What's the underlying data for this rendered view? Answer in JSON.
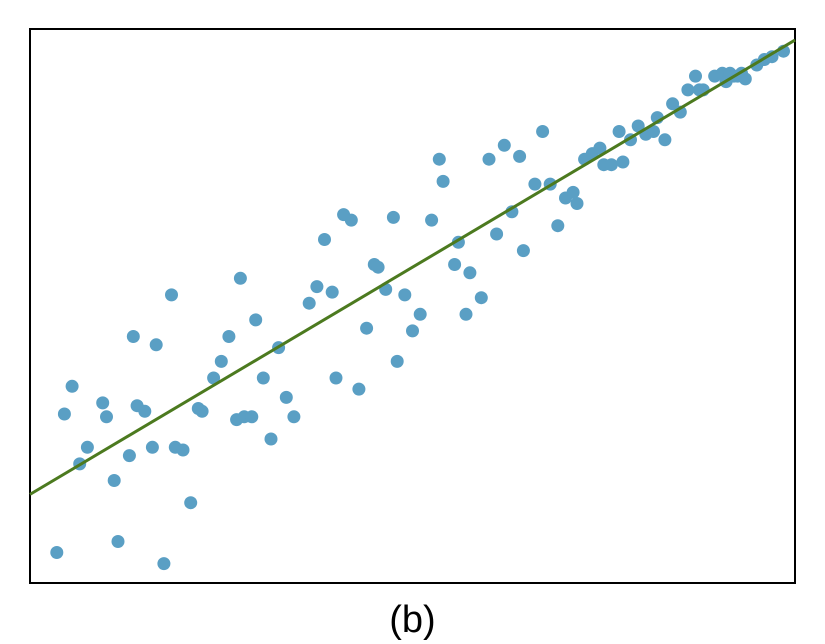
{
  "caption": "(b)",
  "chart_data": {
    "type": "scatter",
    "title": "",
    "xlabel": "",
    "ylabel": "",
    "xlim": [
      0,
      100
    ],
    "ylim": [
      0,
      100
    ],
    "grid": false,
    "axis_ticks": false,
    "colors": {
      "points": "#5a9fc4",
      "trend_line": "#4c7a1f",
      "frame": "#000000"
    },
    "trend_line": {
      "intercept": 16,
      "slope": 0.82
    },
    "series": [
      {
        "points": [
          [
            3.5,
            5.5
          ],
          [
            4.5,
            30.5
          ],
          [
            5.5,
            35.5
          ],
          [
            6.5,
            21.5
          ],
          [
            7.5,
            24.5
          ],
          [
            9.5,
            32.5
          ],
          [
            11.5,
            7.5
          ],
          [
            10.0,
            30.0
          ],
          [
            11.0,
            18.5
          ],
          [
            13.0,
            23.0
          ],
          [
            13.5,
            44.5
          ],
          [
            14.0,
            32.0
          ],
          [
            15.0,
            31.0
          ],
          [
            16.0,
            24.5
          ],
          [
            16.5,
            43.0
          ],
          [
            17.5,
            3.5
          ],
          [
            18.5,
            52.0
          ],
          [
            19.0,
            24.5
          ],
          [
            20.0,
            24.0
          ],
          [
            21.0,
            14.5
          ],
          [
            22.0,
            31.5
          ],
          [
            22.5,
            31.0
          ],
          [
            24.0,
            37.0
          ],
          [
            25.0,
            40.0
          ],
          [
            26.0,
            44.5
          ],
          [
            27.0,
            29.5
          ],
          [
            27.5,
            55.0
          ],
          [
            28.0,
            30.0
          ],
          [
            29.5,
            47.5
          ],
          [
            29.0,
            30.0
          ],
          [
            30.5,
            37.0
          ],
          [
            31.5,
            26.0
          ],
          [
            32.5,
            42.5
          ],
          [
            33.5,
            33.5
          ],
          [
            34.5,
            30.0
          ],
          [
            36.5,
            50.5
          ],
          [
            37.5,
            53.5
          ],
          [
            38.5,
            62.0
          ],
          [
            39.5,
            52.5
          ],
          [
            40.0,
            37.0
          ],
          [
            41.0,
            66.5
          ],
          [
            42.0,
            65.5
          ],
          [
            43.0,
            35.0
          ],
          [
            44.0,
            46.0
          ],
          [
            45.0,
            57.5
          ],
          [
            45.5,
            57.0
          ],
          [
            46.5,
            53.0
          ],
          [
            47.5,
            66.0
          ],
          [
            48.0,
            40.0
          ],
          [
            49.0,
            52.0
          ],
          [
            50.0,
            45.5
          ],
          [
            51.0,
            48.5
          ],
          [
            52.5,
            65.5
          ],
          [
            53.5,
            76.5
          ],
          [
            54.0,
            72.5
          ],
          [
            55.5,
            57.5
          ],
          [
            56.0,
            61.5
          ],
          [
            57.0,
            48.5
          ],
          [
            57.5,
            56.0
          ],
          [
            59.0,
            51.5
          ],
          [
            60.0,
            76.5
          ],
          [
            61.0,
            63.0
          ],
          [
            62.0,
            79.0
          ],
          [
            63.0,
            67.0
          ],
          [
            64.0,
            77.0
          ],
          [
            64.5,
            60.0
          ],
          [
            66.0,
            72.0
          ],
          [
            67.0,
            81.5
          ],
          [
            68.0,
            72.0
          ],
          [
            69.0,
            64.5
          ],
          [
            70.0,
            69.5
          ],
          [
            71.0,
            70.5
          ],
          [
            71.5,
            68.5
          ],
          [
            72.5,
            76.5
          ],
          [
            73.5,
            77.5
          ],
          [
            74.5,
            78.5
          ],
          [
            75.0,
            75.5
          ],
          [
            76.0,
            75.5
          ],
          [
            77.0,
            81.5
          ],
          [
            77.5,
            76.0
          ],
          [
            78.5,
            80.0
          ],
          [
            79.5,
            82.5
          ],
          [
            80.5,
            81.0
          ],
          [
            81.5,
            81.5
          ],
          [
            82.0,
            84.0
          ],
          [
            83.0,
            80.0
          ],
          [
            84.0,
            86.5
          ],
          [
            85.0,
            85.0
          ],
          [
            86.0,
            89.0
          ],
          [
            87.0,
            91.5
          ],
          [
            87.5,
            89.0
          ],
          [
            88.0,
            89.0
          ],
          [
            89.5,
            91.5
          ],
          [
            90.5,
            92.0
          ],
          [
            91.0,
            90.5
          ],
          [
            91.5,
            92.0
          ],
          [
            92.0,
            91.5
          ],
          [
            92.5,
            91.5
          ],
          [
            93.0,
            92.0
          ],
          [
            93.5,
            91.0
          ],
          [
            95.0,
            93.5
          ],
          [
            96.0,
            94.5
          ],
          [
            97.0,
            95.0
          ],
          [
            98.5,
            96.0
          ]
        ]
      }
    ]
  }
}
